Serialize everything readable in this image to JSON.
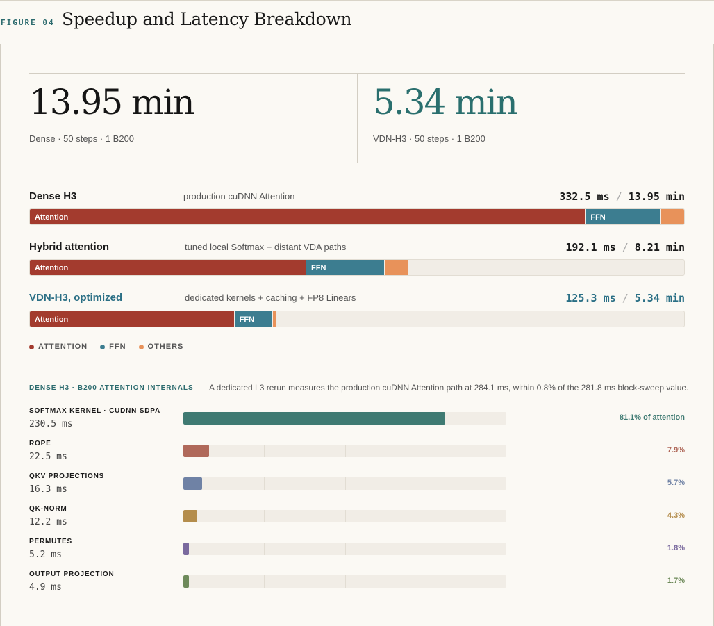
{
  "figure": {
    "tag": "FIGURE 04",
    "title": "Speedup and Latency Breakdown"
  },
  "headline": {
    "dense": {
      "value": "13.95 min",
      "caption": "Dense · 50 steps · 1 B200"
    },
    "vdn": {
      "value": "5.34 min",
      "caption": "VDN-H3 · 50 steps · 1 B200"
    }
  },
  "colors": {
    "attention": "#a33b2e",
    "ffn": "#3c7d90",
    "others": "#e8925a",
    "accent": "#2c6b6e",
    "vdn_text": "#2a6f85"
  },
  "chart_data": [
    {
      "type": "bar",
      "orientation": "horizontal-stacked",
      "series_order": [
        "Attention",
        "FFN",
        "Others"
      ],
      "scale_max_ms": 332.5,
      "rows": [
        {
          "name": "Dense H3",
          "description": "production cuDNN Attention",
          "step_time": "332.5 ms",
          "total_time": "13.95 min",
          "total_ms": 332.5,
          "segments": [
            {
              "label": "Attention",
              "ms": 282.5
            },
            {
              "label": "FFN",
              "ms": 38.0
            },
            {
              "label": "",
              "ms": 12.0
            }
          ]
        },
        {
          "name": "Hybrid attention",
          "description": "tuned local Softmax + distant VDA paths",
          "step_time": "192.1 ms",
          "total_time": "8.21 min",
          "total_ms": 192.1,
          "segments": [
            {
              "label": "Attention",
              "ms": 140.5
            },
            {
              "label": "FFN",
              "ms": 40.0
            },
            {
              "label": "",
              "ms": 11.6
            }
          ]
        },
        {
          "name": "VDN-H3, optimized",
          "description": "dedicated kernels + caching + FP8 Linears",
          "step_time": "125.3 ms",
          "total_time": "5.34 min",
          "total_ms": 125.3,
          "segments": [
            {
              "label": "Attention",
              "ms": 104.0
            },
            {
              "label": "FFN",
              "ms": 19.6
            },
            {
              "label": "",
              "ms": 1.7
            }
          ]
        }
      ],
      "legend": [
        "ATTENTION",
        "FFN",
        "OTHERS"
      ]
    },
    {
      "type": "bar",
      "orientation": "horizontal",
      "title": "DENSE H3 · B200 ATTENTION INTERNALS",
      "note": "A dedicated L3 rerun measures the production cuDNN Attention path at 284.1 ms, within 0.8% of the 281.8 ms block-sweep value.",
      "items": [
        {
          "label": "SOFTMAX KERNEL · CUDNN SDPA",
          "value": "230.5 ms",
          "percent": 81.1,
          "percent_label": "81.1% of attention",
          "color": "#3f7a72"
        },
        {
          "label": "ROPE",
          "value": "22.5 ms",
          "percent": 7.9,
          "percent_label": "7.9%",
          "color": "#b0695a"
        },
        {
          "label": "QKV PROJECTIONS",
          "value": "16.3 ms",
          "percent": 5.7,
          "percent_label": "5.7%",
          "color": "#6f82a5"
        },
        {
          "label": "QK-NORM",
          "value": "12.2 ms",
          "percent": 4.3,
          "percent_label": "4.3%",
          "color": "#b48d4c"
        },
        {
          "label": "PERMUTES",
          "value": "5.2 ms",
          "percent": 1.8,
          "percent_label": "1.8%",
          "color": "#7a6a9e"
        },
        {
          "label": "OUTPUT PROJECTION",
          "value": "4.9 ms",
          "percent": 1.7,
          "percent_label": "1.7%",
          "color": "#6e8a5a"
        }
      ]
    }
  ]
}
